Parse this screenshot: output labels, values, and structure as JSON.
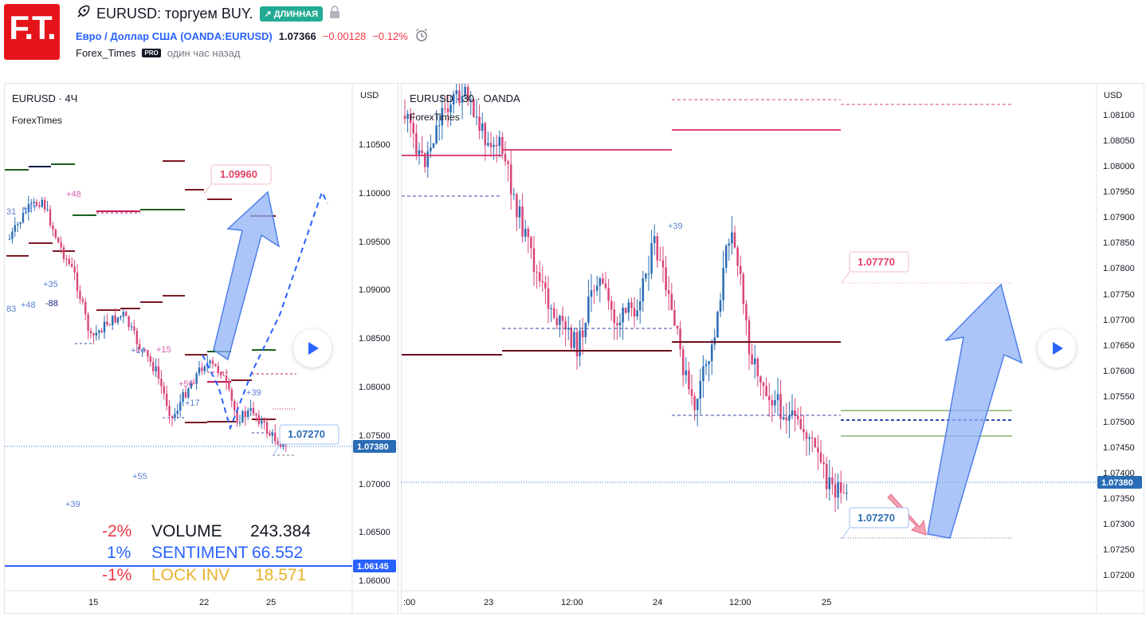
{
  "header": {
    "logo_text": "F.T.",
    "idea_title": "EURUSD: торгуем BUY.",
    "direction_badge": "↗ ДЛИННАЯ",
    "symbol_name": "Евро / Доллар США",
    "symbol_code": "(OANDA:EURUSD)",
    "price": "1.07366",
    "change": "−0.00128",
    "change_pct": "−0.12%",
    "author": "Forex_Times",
    "author_badge": "PRO",
    "published": "один час назад"
  },
  "left_chart": {
    "legend": "EURUSD · 4Ч",
    "indicator": "ForexTimes",
    "currency": "USD",
    "y_ticks": [
      "1.10500",
      "1.10000",
      "1.09500",
      "1.09000",
      "1.08500",
      "1.08000",
      "1.07500",
      "1.07000",
      "1.06500",
      "1.06000"
    ],
    "x_ticks": [
      "15",
      "22",
      "25"
    ],
    "price_tag": "1.07380",
    "blue_tag": "1.06145",
    "target_label": "1.09960",
    "stop_label": "1.07270",
    "annotations": [
      "+48",
      "+37",
      "31",
      "+35",
      "83",
      "+48",
      "-88",
      "+14",
      "+15",
      "+56",
      "+17",
      "+39",
      "+55",
      "+39"
    ],
    "stats": [
      {
        "pct": "-2%",
        "name": "VOLUME",
        "value": "243.384",
        "color": "#f23645",
        "name_color": "#131722"
      },
      {
        "pct": "1%",
        "name": "SENTIMENT",
        "value": "66.552",
        "color": "#2962ff",
        "name_color": "#2962ff"
      },
      {
        "pct": "-1%",
        "name": "LOCK INV",
        "value": "18.571",
        "color": "#f23645",
        "name_color": "#e8b32c"
      }
    ]
  },
  "right_chart": {
    "legend": "EURUSD · 30 · OANDA",
    "indicator": "ForexTimes",
    "currency": "USD",
    "y_ticks": [
      "1.08100",
      "1.08050",
      "1.08000",
      "1.07950",
      "1.07900",
      "1.07850",
      "1.07800",
      "1.07750",
      "1.07700",
      "1.07650",
      "1.07600",
      "1.07550",
      "1.07500",
      "1.07450",
      "1.07400",
      "1.07350",
      "1.07300",
      "1.07250",
      "1.07200"
    ],
    "x_ticks": [
      ":00",
      "23",
      "12:00",
      "24",
      "12:00",
      "25"
    ],
    "price_tag": "1.07380",
    "target_label": "1.07770",
    "stop_label": "1.07270",
    "annotation": "+39"
  },
  "colors": {
    "up": "#2a6cb5",
    "down": "#d9457b",
    "accent": "#2962ff",
    "badge_green": "#22ab94",
    "brand_red": "#e5141b"
  },
  "icons": [
    "rocket-icon",
    "lock-icon",
    "alarm-clock-icon",
    "play-icon"
  ]
}
